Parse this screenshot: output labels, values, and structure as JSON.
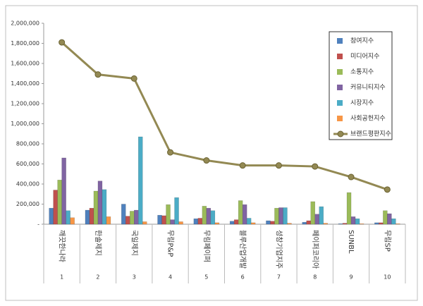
{
  "chart_data": {
    "type": "bar-line",
    "categories": [
      "깨끗한나라",
      "한솔제지",
      "국일제지",
      "무림P&P",
      "무림페이퍼",
      "블루산업개발",
      "성창기업지주",
      "페이퍼코리아",
      "SUNBL",
      "무림SP"
    ],
    "category_numbers": [
      "1",
      "2",
      "3",
      "4",
      "5",
      "6",
      "7",
      "8",
      "9",
      "10"
    ],
    "series": [
      {
        "name": "참여지수",
        "color": "#4f81bd",
        "kind": "bar",
        "values": [
          160000,
          140000,
          200000,
          90000,
          55000,
          30000,
          35000,
          20000,
          5000,
          15000
        ]
      },
      {
        "name": "미디어지수",
        "color": "#c0504d",
        "kind": "bar",
        "values": [
          340000,
          160000,
          80000,
          85000,
          60000,
          45000,
          30000,
          35000,
          10000,
          15000
        ]
      },
      {
        "name": "소통지수",
        "color": "#9bbb59",
        "kind": "bar",
        "values": [
          440000,
          330000,
          130000,
          195000,
          180000,
          235000,
          160000,
          225000,
          315000,
          135000
        ]
      },
      {
        "name": "커뮤니티지수",
        "color": "#8064a2",
        "kind": "bar",
        "values": [
          660000,
          430000,
          140000,
          45000,
          160000,
          195000,
          165000,
          100000,
          75000,
          105000
        ]
      },
      {
        "name": "시장지수",
        "color": "#4bacc6",
        "kind": "bar",
        "values": [
          135000,
          345000,
          870000,
          265000,
          135000,
          60000,
          165000,
          175000,
          55000,
          55000
        ]
      },
      {
        "name": "사회공헌지수",
        "color": "#f79646",
        "kind": "bar",
        "values": [
          65000,
          75000,
          25000,
          25000,
          15000,
          15000,
          10000,
          10000,
          5000,
          5000
        ]
      },
      {
        "name": "브랜드평판지수",
        "color": "#938953",
        "kind": "line",
        "values": [
          1810000,
          1490000,
          1450000,
          715000,
          635000,
          585000,
          585000,
          575000,
          470000,
          345000
        ]
      }
    ],
    "ylim": [
      0,
      2000000
    ],
    "yticks": [
      {
        "value": 0,
        "label": "-"
      },
      {
        "value": 200000,
        "label": "200,000"
      },
      {
        "value": 400000,
        "label": "400,000"
      },
      {
        "value": 600000,
        "label": "600,000"
      },
      {
        "value": 800000,
        "label": "800,000"
      },
      {
        "value": 1000000,
        "label": "1,000,000"
      },
      {
        "value": 1200000,
        "label": "1,200,000"
      },
      {
        "value": 1400000,
        "label": "1,400,000"
      },
      {
        "value": 1600000,
        "label": "1,600,000"
      },
      {
        "value": 1800000,
        "label": "1,800,000"
      },
      {
        "value": 2000000,
        "label": "2,000,000"
      }
    ],
    "grid": false,
    "legend": "upper right"
  }
}
